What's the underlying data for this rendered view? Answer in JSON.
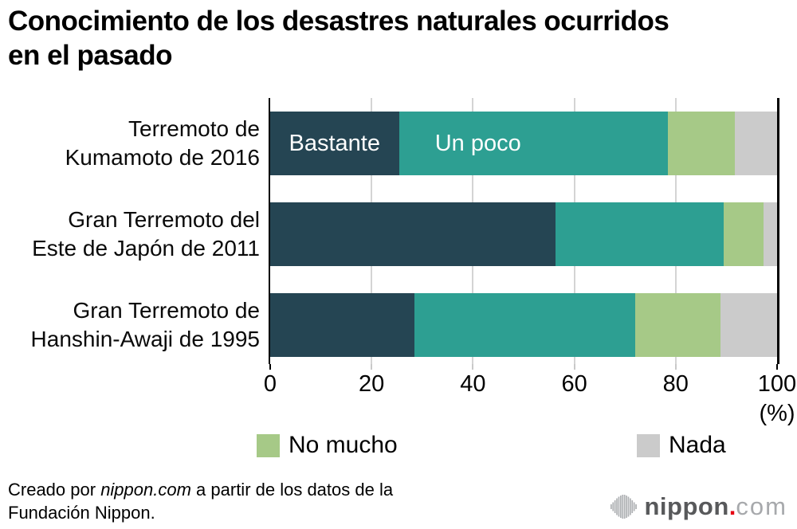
{
  "title": "Conocimiento de los desastres naturales ocurridos\nen el pasado",
  "chart_data": {
    "type": "bar",
    "orientation": "horizontal",
    "stacked": true,
    "title": "Conocimiento de los desastres naturales ocurridos en el pasado",
    "categories": [
      "Terremoto de\nKumamoto de 2016",
      "Gran Terremoto del\nEste de Japón de 2011",
      "Gran Terremoto de\nHanshin-Awaji de 1995"
    ],
    "series": [
      {
        "name": "Bastante",
        "color": "#254553",
        "values": [
          25.5,
          56.3,
          28.5
        ]
      },
      {
        "name": "Un poco",
        "color": "#2d9f92",
        "values": [
          52.9,
          33.1,
          43.5
        ]
      },
      {
        "name": "No mucho",
        "color": "#a6c987",
        "values": [
          13.3,
          7.9,
          16.9
        ]
      },
      {
        "name": "Nada",
        "color": "#cbcbcb",
        "values": [
          8.3,
          2.7,
          11.1
        ]
      }
    ],
    "xlim": [
      0,
      100
    ],
    "x_ticks": [
      0,
      20,
      40,
      60,
      80,
      100
    ],
    "x_unit_label": "(%)",
    "grid": true,
    "bar_inner_labels": [
      {
        "row": 0,
        "series": 0,
        "text": "Bastante",
        "center_pct": 12.7
      },
      {
        "row": 0,
        "series": 1,
        "text": "Un poco",
        "center_pct": 41.0
      }
    ],
    "legend": [
      {
        "label": "No mucho",
        "color": "#a6c987"
      },
      {
        "label": "Nada",
        "color": "#cbcbcb"
      }
    ],
    "legend_position": "bottom"
  },
  "footer": {
    "prefix": "Creado por ",
    "brand": "nippon.com",
    "suffix": " a partir de los datos de la",
    "line2": "Fundación Nippon."
  },
  "logo": {
    "bold": "nippon",
    "dot": ".",
    "light": "com"
  }
}
